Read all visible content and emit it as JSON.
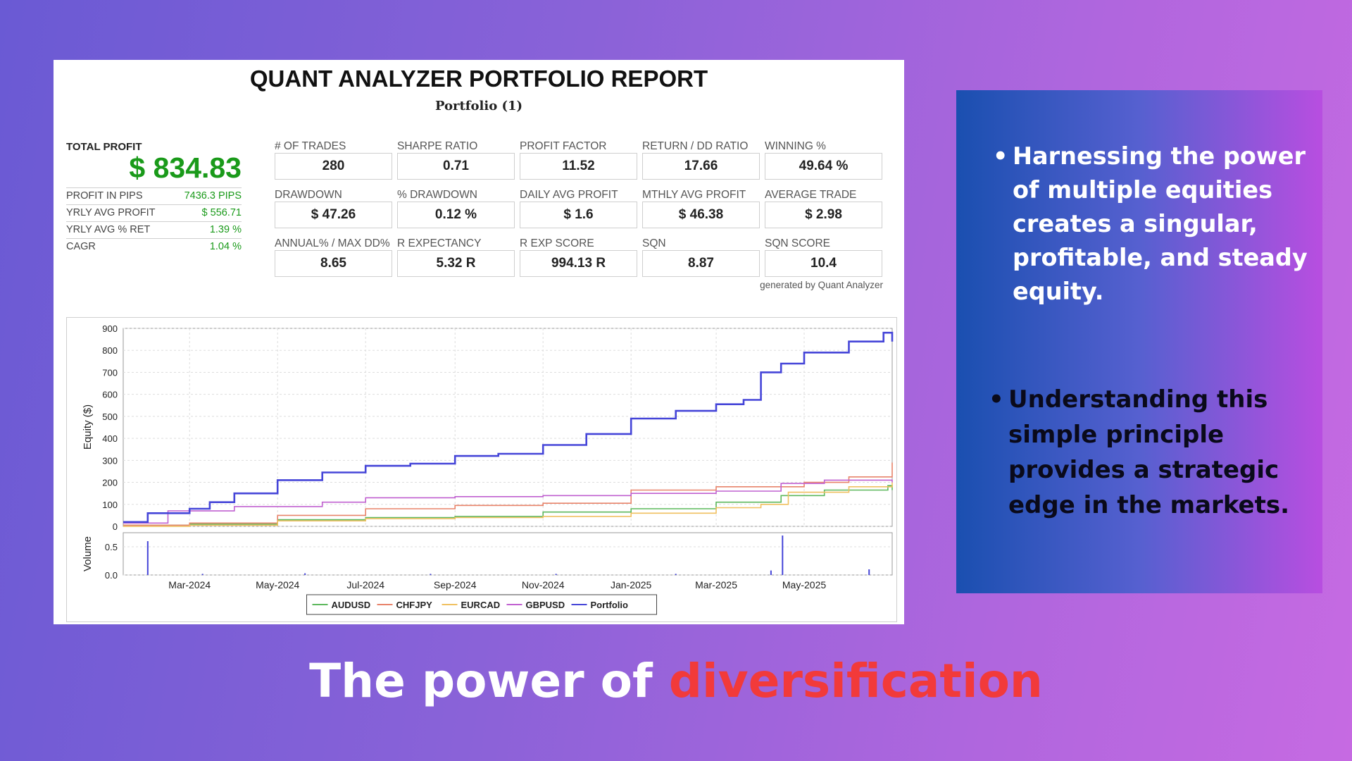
{
  "report": {
    "title": "QUANT ANALYZER PORTFOLIO REPORT",
    "subtitle": "Portfolio (1)",
    "total_profit_label": "TOTAL PROFIT",
    "total_profit_value": "$ 834.83",
    "side_stats": [
      {
        "label": "PROFIT IN PIPS",
        "value": "7436.3 PIPS"
      },
      {
        "label": "YRLY AVG PROFIT",
        "value": "$ 556.71"
      },
      {
        "label": "YRLY AVG % RET",
        "value": "1.39 %"
      },
      {
        "label": "CAGR",
        "value": "1.04 %"
      }
    ],
    "metrics": [
      {
        "label": "# OF TRADES",
        "value": "280"
      },
      {
        "label": "SHARPE RATIO",
        "value": "0.71"
      },
      {
        "label": "PROFIT FACTOR",
        "value": "11.52"
      },
      {
        "label": "RETURN / DD RATIO",
        "value": "17.66"
      },
      {
        "label": "WINNING %",
        "value": "49.64 %"
      },
      {
        "label": "DRAWDOWN",
        "value": "$ 47.26"
      },
      {
        "label": "% DRAWDOWN",
        "value": "0.12 %"
      },
      {
        "label": "DAILY AVG PROFIT",
        "value": "$ 1.6"
      },
      {
        "label": "MTHLY AVG PROFIT",
        "value": "$ 46.38"
      },
      {
        "label": "AVERAGE TRADE",
        "value": "$ 2.98"
      },
      {
        "label": "ANNUAL% / MAX DD%",
        "value": "8.65"
      },
      {
        "label": "R EXPECTANCY",
        "value": "5.32 R"
      },
      {
        "label": "R EXP SCORE",
        "value": "994.13 R"
      },
      {
        "label": "SQN",
        "value": "8.87"
      },
      {
        "label": "SQN SCORE",
        "value": "10.4"
      }
    ],
    "generated_by": "generated by Quant Analyzer"
  },
  "colors": {
    "AUDUSD": "#5cb85c",
    "CHFJPY": "#e8836a",
    "EURCAD": "#f0c060",
    "GBPUSD": "#c060d0",
    "Portfolio": "#4545d8",
    "profit_green": "#1a9a1a",
    "headline_accent": "#f23a3a"
  },
  "chart_data": [
    {
      "type": "line",
      "ylabel": "Equity ($)",
      "ylim": [
        0,
        900
      ],
      "y_ticks": [
        0,
        100,
        200,
        300,
        400,
        500,
        600,
        700,
        800,
        900
      ],
      "x_range": [
        "2024-01-15",
        "2025-07-01"
      ],
      "x_ticks": [
        {
          "date": "2024-03-01",
          "label": "Mar-2024"
        },
        {
          "date": "2024-05-01",
          "label": "May-2024"
        },
        {
          "date": "2024-07-01",
          "label": "Jul-2024"
        },
        {
          "date": "2024-09-01",
          "label": "Sep-2024"
        },
        {
          "date": "2024-11-01",
          "label": "Nov-2024"
        },
        {
          "date": "2025-01-01",
          "label": "Jan-2025"
        },
        {
          "date": "2025-03-01",
          "label": "Mar-2025"
        },
        {
          "date": "2025-05-01",
          "label": "May-2025"
        }
      ],
      "grid": true,
      "legend": "bottom-center",
      "series": [
        {
          "name": "AUDUSD",
          "x": [
            "2024-01-15",
            "2024-03-01",
            "2024-05-01",
            "2024-07-01",
            "2024-09-01",
            "2024-11-01",
            "2025-01-01",
            "2025-03-01",
            "2025-04-15",
            "2025-05-15",
            "2025-06-28",
            "2025-07-01"
          ],
          "y": [
            5,
            10,
            30,
            40,
            45,
            65,
            80,
            110,
            140,
            165,
            185,
            165
          ]
        },
        {
          "name": "CHFJPY",
          "x": [
            "2024-01-15",
            "2024-03-01",
            "2024-05-01",
            "2024-07-01",
            "2024-09-01",
            "2024-11-01",
            "2025-01-01",
            "2025-03-01",
            "2025-05-01",
            "2025-06-01",
            "2025-07-01"
          ],
          "y": [
            5,
            15,
            50,
            80,
            95,
            105,
            165,
            180,
            200,
            225,
            290
          ]
        },
        {
          "name": "EURCAD",
          "x": [
            "2024-01-15",
            "2024-03-01",
            "2024-05-01",
            "2024-07-01",
            "2024-09-01",
            "2024-11-01",
            "2025-01-01",
            "2025-03-01",
            "2025-04-01",
            "2025-04-20",
            "2025-06-01",
            "2025-07-01"
          ],
          "y": [
            0,
            5,
            25,
            35,
            40,
            45,
            60,
            85,
            100,
            155,
            180,
            200
          ]
        },
        {
          "name": "GBPUSD",
          "x": [
            "2024-01-15",
            "2024-02-15",
            "2024-04-01",
            "2024-06-01",
            "2024-07-01",
            "2024-09-01",
            "2024-11-01",
            "2025-01-01",
            "2025-03-01",
            "2025-04-15",
            "2025-05-15",
            "2025-07-01"
          ],
          "y": [
            15,
            70,
            90,
            110,
            130,
            135,
            140,
            150,
            160,
            195,
            210,
            200
          ]
        },
        {
          "name": "Portfolio",
          "x": [
            "2024-01-15",
            "2024-02-01",
            "2024-03-01",
            "2024-03-15",
            "2024-04-01",
            "2024-05-01",
            "2024-06-01",
            "2024-07-01",
            "2024-08-01",
            "2024-09-01",
            "2024-10-01",
            "2024-11-01",
            "2024-12-01",
            "2025-01-01",
            "2025-02-01",
            "2025-03-01",
            "2025-03-20",
            "2025-04-01",
            "2025-04-15",
            "2025-05-01",
            "2025-06-01",
            "2025-06-25",
            "2025-07-01"
          ],
          "y": [
            20,
            60,
            80,
            110,
            150,
            210,
            245,
            275,
            285,
            320,
            330,
            370,
            420,
            490,
            525,
            555,
            575,
            700,
            740,
            790,
            840,
            880,
            840
          ]
        }
      ]
    },
    {
      "type": "bar",
      "ylabel": "Volume",
      "ylim": [
        0,
        0.75
      ],
      "y_ticks": [
        0.0,
        0.5
      ],
      "x": [
        "2024-02-01",
        "2024-03-10",
        "2024-05-20",
        "2024-08-15",
        "2024-11-10",
        "2025-02-01",
        "2025-04-08",
        "2025-04-16",
        "2025-06-15"
      ],
      "values": [
        0.6,
        0.02,
        0.03,
        0.02,
        0.02,
        0.02,
        0.08,
        0.7,
        0.1
      ]
    }
  ],
  "panel": {
    "bullet1": "Harnessing the power of multiple equities creates a singular, profitable, and steady equity.",
    "bullet2": "Understanding this simple principle provides a strategic edge in the markets.",
    "bullet_char": "•"
  },
  "headline": {
    "part1": "The power of ",
    "part2": "diversification"
  }
}
